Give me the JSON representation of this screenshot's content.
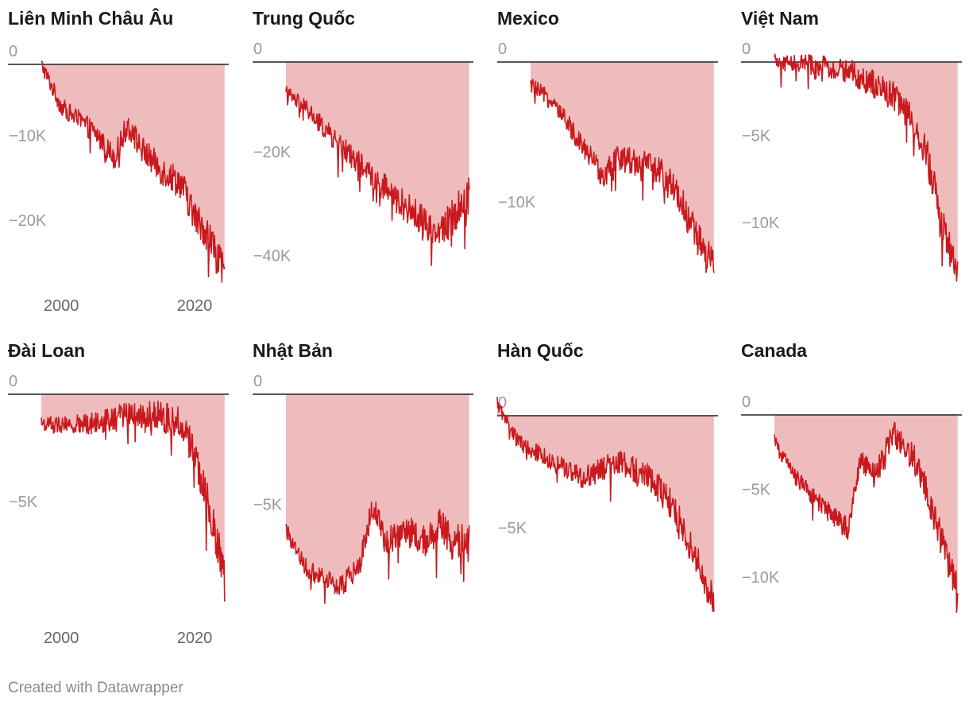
{
  "chart_data": [
    {
      "type": "area",
      "title": "Liên Minh Châu Âu",
      "y_ticks": [
        {
          "value": 0,
          "label": "0"
        },
        {
          "value": -10000,
          "label": "−10K"
        },
        {
          "value": -20000,
          "label": "−20K"
        }
      ],
      "x_ticks": [
        {
          "value": 2000,
          "label": "2000"
        },
        {
          "value": 2020,
          "label": "2020"
        }
      ],
      "x": [
        1997,
        2000,
        2005,
        2008,
        2010,
        2012,
        2015,
        2018,
        2020,
        2022,
        2024.5
      ],
      "y": [
        0,
        -5000,
        -8000,
        -11000,
        -7000,
        -10000,
        -12500,
        -14000,
        -18000,
        -20000,
        -25000
      ],
      "ylim": [
        -26000,
        1500
      ],
      "xlim": [
        1992,
        2025
      ],
      "colors": {
        "line": "#c9191e",
        "area": "#efbcbd"
      }
    },
    {
      "type": "area",
      "title": "Trung Quốc",
      "y_ticks": [
        {
          "value": 0,
          "label": "0"
        },
        {
          "value": -20000,
          "label": "−20K"
        },
        {
          "value": -40000,
          "label": "−40K"
        }
      ],
      "x_ticks": [],
      "x": [
        1997,
        2000,
        2005,
        2010,
        2015,
        2018,
        2020,
        2022,
        2024.5
      ],
      "y": [
        -6000,
        -9000,
        -16000,
        -22000,
        -28000,
        -31000,
        -33000,
        -30000,
        -25000
      ],
      "ylim": [
        -43000,
        3000
      ],
      "xlim": [
        1992,
        2025
      ],
      "colors": {
        "line": "#c9191e",
        "area": "#efbcbd"
      }
    },
    {
      "type": "area",
      "title": "Mexico",
      "y_ticks": [
        {
          "value": 0,
          "label": "0"
        },
        {
          "value": -10000,
          "label": "−10K"
        }
      ],
      "x_ticks": [],
      "x": [
        1997,
        2000,
        2005,
        2008,
        2010,
        2013,
        2016,
        2019,
        2022,
        2024.5
      ],
      "y": [
        -1500,
        -2500,
        -5500,
        -7500,
        -6200,
        -6500,
        -7000,
        -8500,
        -11500,
        -13500
      ],
      "ylim": [
        -14500,
        1000
      ],
      "xlim": [
        1992,
        2025
      ],
      "colors": {
        "line": "#c9191e",
        "area": "#efbcbd"
      }
    },
    {
      "type": "area",
      "title": "Việt Nam",
      "y_ticks": [
        {
          "value": 0,
          "label": "0"
        },
        {
          "value": -5000,
          "label": "−5K"
        },
        {
          "value": -10000,
          "label": "−10K"
        }
      ],
      "x_ticks": [],
      "x": [
        1997,
        2002,
        2008,
        2012,
        2015,
        2018,
        2020,
        2022,
        2024.5
      ],
      "y": [
        0,
        -100,
        -500,
        -1300,
        -2000,
        -3500,
        -5500,
        -9000,
        -12500
      ],
      "ylim": [
        -12800,
        500
      ],
      "xlim": [
        1992,
        2025
      ],
      "colors": {
        "line": "#c9191e",
        "area": "#efbcbd"
      }
    },
    {
      "type": "area",
      "title": "Đài Loan",
      "y_ticks": [
        {
          "value": 0,
          "label": "0"
        },
        {
          "value": -5000,
          "label": "−5K"
        }
      ],
      "x_ticks": [
        {
          "value": 2000,
          "label": "2000"
        },
        {
          "value": 2020,
          "label": "2020"
        }
      ],
      "x": [
        1997,
        2000,
        2005,
        2010,
        2015,
        2018,
        2020,
        2022,
        2024.5
      ],
      "y": [
        -1200,
        -1300,
        -1200,
        -800,
        -900,
        -1200,
        -2500,
        -4500,
        -7500
      ],
      "ylim": [
        -9200,
        500
      ],
      "xlim": [
        1992,
        2025
      ],
      "colors": {
        "line": "#c9191e",
        "area": "#efbcbd"
      }
    },
    {
      "type": "area",
      "title": "Nhật Bản",
      "y_ticks": [
        {
          "value": 0,
          "label": "0"
        },
        {
          "value": -5000,
          "label": "−5K"
        }
      ],
      "x_ticks": [],
      "x": [
        1997,
        2000,
        2005,
        2008,
        2010,
        2012,
        2015,
        2018,
        2020,
        2022,
        2024.5
      ],
      "y": [
        -5500,
        -7000,
        -7800,
        -7000,
        -4500,
        -6000,
        -5500,
        -6000,
        -5300,
        -6000,
        -6000
      ],
      "ylim": [
        -9000,
        500
      ],
      "xlim": [
        1992,
        2025
      ],
      "colors": {
        "line": "#c9191e",
        "area": "#efbcbd"
      }
    },
    {
      "type": "area",
      "title": "Hàn Quốc",
      "y_ticks": [
        {
          "value": 0,
          "label": "0"
        },
        {
          "value": -5000,
          "label": "−5K"
        }
      ],
      "x_ticks": [],
      "x": [
        1992,
        1995,
        2000,
        2005,
        2010,
        2015,
        2018,
        2020,
        2022,
        2024.5
      ],
      "y": [
        500,
        -1000,
        -1800,
        -2500,
        -1800,
        -2500,
        -3500,
        -4500,
        -5800,
        -7500
      ],
      "ylim": [
        -8000,
        1100
      ],
      "xlim": [
        1992,
        2025
      ],
      "colors": {
        "line": "#c9191e",
        "area": "#efbcbd"
      }
    },
    {
      "type": "area",
      "title": "Canada",
      "y_ticks": [
        {
          "value": 0,
          "label": "0"
        },
        {
          "value": -5000,
          "label": "−5K"
        },
        {
          "value": -10000,
          "label": "−10K"
        }
      ],
      "x_ticks": [],
      "x": [
        1997,
        2000,
        2005,
        2008,
        2010,
        2012,
        2015,
        2018,
        2020,
        2022,
        2024.5
      ],
      "y": [
        -1500,
        -3500,
        -5500,
        -6500,
        -2500,
        -3500,
        -1000,
        -2500,
        -4500,
        -7000,
        -10000
      ],
      "ylim": [
        -11500,
        1100
      ],
      "xlim": [
        1992,
        2025
      ],
      "colors": {
        "line": "#c9191e",
        "area": "#efbcbd"
      }
    }
  ],
  "footer": "Created with Datawrapper"
}
